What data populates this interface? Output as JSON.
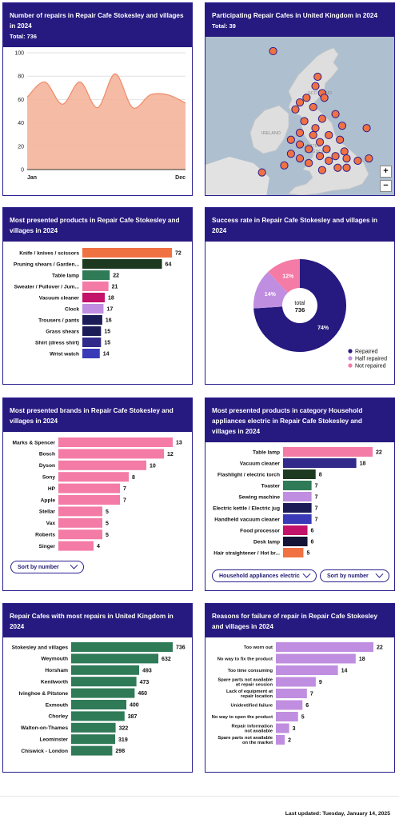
{
  "colors": {
    "header": "#26197f",
    "accent_orange": "#f07142",
    "dark_green": "#1d3a20",
    "green": "#2f7a57",
    "pink": "#f47ba6",
    "magenta": "#c2126a",
    "lavender": "#c08ee0",
    "navy": "#1b1b57",
    "indigo": "#312a8a",
    "blue": "#3a3ab8",
    "area_fill": "#f4b49b"
  },
  "cards": {
    "repairs_time": {
      "title": "Number of repairs in Repair Cafe Stokesley and villages in 2024",
      "total": "Total: 736"
    },
    "map": {
      "title": "Participating Repair Cafes in United Kingdom in 2024",
      "total": "Total: 39",
      "zoom_in": "+",
      "zoom_out": "−",
      "labels": {
        "scotland": "SCOTLAND",
        "ireland": "IRELAND",
        "united": "UNITED",
        "kingdom": "KINGDOM"
      }
    },
    "products": {
      "title": "Most presented products in Repair Cafe Stokesley and villages in 2024"
    },
    "success": {
      "title": "Success rate in Repair Cafe Stokesley and villages in 2024"
    },
    "brands": {
      "title": "Most presented brands in Repair Cafe Stokesley and villages in 2024",
      "sort_label": "Sort by number"
    },
    "household": {
      "title": "Most presented products in category Household appliances electric in Repair Cafe Stokesley and villages in 2024",
      "category_label": "Household appliances electric",
      "sort_label": "Sort by number"
    },
    "cafes": {
      "title": "Repair Cafes with most repairs in United Kingdom in 2024"
    },
    "failure": {
      "title": "Reasons for failure of repair in Repair Cafe Stokesley and villages in 2024"
    }
  },
  "footer": {
    "updated": "Last updated: Tuesday, January 14, 2025"
  },
  "chart_data": [
    {
      "id": "repairs_time",
      "type": "area",
      "x_ticks": [
        "Jan",
        "Dec"
      ],
      "y_ticks": [
        0,
        20,
        40,
        60,
        80,
        100
      ],
      "ylim": [
        0,
        100
      ],
      "values": [
        62,
        75,
        56,
        75,
        53,
        82,
        53,
        64,
        64,
        57
      ]
    },
    {
      "id": "map",
      "type": "scatter",
      "points": [
        [
          -1.4,
          54.8
        ],
        [
          -1.5,
          54.4
        ],
        [
          -1.2,
          54.1
        ],
        [
          -1.9,
          53.9
        ],
        [
          -1.1,
          53.9
        ],
        [
          -2.2,
          53.7
        ],
        [
          -1.6,
          53.5
        ],
        [
          -2.4,
          53.4
        ],
        [
          -0.6,
          53.2
        ],
        [
          -1.2,
          53.0
        ],
        [
          -2.0,
          52.9
        ],
        [
          -1.5,
          52.6
        ],
        [
          -0.3,
          52.7
        ],
        [
          -2.2,
          52.4
        ],
        [
          -1.6,
          52.3
        ],
        [
          -0.9,
          52.3
        ],
        [
          -2.6,
          52.1
        ],
        [
          -1.3,
          52.0
        ],
        [
          -0.4,
          52.1
        ],
        [
          -2.2,
          51.9
        ],
        [
          -1.8,
          51.7
        ],
        [
          -1.0,
          51.7
        ],
        [
          -0.2,
          51.6
        ],
        [
          -2.6,
          51.5
        ],
        [
          -0.6,
          51.4
        ],
        [
          -1.3,
          51.4
        ],
        [
          -2.2,
          51.3
        ],
        [
          -0.9,
          51.2
        ],
        [
          -0.1,
          51.3
        ],
        [
          -1.8,
          51.1
        ],
        [
          -0.5,
          50.9
        ],
        [
          -2.9,
          51.0
        ],
        [
          -1.2,
          50.8
        ],
        [
          -0.1,
          50.9
        ],
        [
          0.4,
          51.2
        ],
        [
          0.9,
          51.3
        ],
        [
          -3.4,
          55.9
        ],
        [
          -3.9,
          50.7
        ],
        [
          0.8,
          52.6
        ]
      ]
    },
    {
      "id": "products",
      "type": "bar",
      "orientation": "horizontal",
      "categories": [
        "Knife / knives / scissors",
        "Pruning shears / Garden...",
        "Table lamp",
        "Sweater / Pullover / Jum...",
        "Vacuum cleaner",
        "Clock",
        "Trousers / pants",
        "Grass shears",
        "Shirt (dress shirt)",
        "Wrist watch"
      ],
      "values": [
        72,
        64,
        22,
        21,
        18,
        17,
        16,
        15,
        15,
        14
      ],
      "colors": [
        "#f07142",
        "#1d3a20",
        "#2f7a57",
        "#f47ba6",
        "#c2126a",
        "#c08ee0",
        "#1b1b57",
        "#1b1b57",
        "#312a8a",
        "#3a3ab8"
      ]
    },
    {
      "id": "success",
      "type": "pie",
      "center_label": "total",
      "center_value": "736",
      "slices": [
        {
          "name": "Repaired",
          "value": 74,
          "label": "74%",
          "color": "#26197f"
        },
        {
          "name": "Half repaired",
          "value": 14,
          "label": "14%",
          "color": "#c08ee0"
        },
        {
          "name": "Not repaired",
          "value": 12,
          "label": "12%",
          "color": "#f47ba6"
        }
      ]
    },
    {
      "id": "brands",
      "type": "bar",
      "orientation": "horizontal",
      "categories": [
        "Marks & Spencer",
        "Bosch",
        "Dyson",
        "Sony",
        "HP",
        "Apple",
        "Stellar",
        "Vax",
        "Roberts",
        "Singer"
      ],
      "values": [
        13,
        12,
        10,
        8,
        7,
        7,
        5,
        5,
        5,
        4
      ],
      "colors": [
        "#f47ba6",
        "#f47ba6",
        "#f47ba6",
        "#f47ba6",
        "#f47ba6",
        "#f47ba6",
        "#f47ba6",
        "#f47ba6",
        "#f47ba6",
        "#f47ba6"
      ]
    },
    {
      "id": "household",
      "type": "bar",
      "orientation": "horizontal",
      "categories": [
        "Table lamp",
        "Vacuum cleaner",
        "Flashlight / electric torch",
        "Toaster",
        "Sewing machine",
        "Electric kettle / Electric jug",
        "Handheld vacuum cleaner",
        "Food processor",
        "Desk lamp",
        "Hair straightener / Hot br..."
      ],
      "values": [
        22,
        18,
        8,
        7,
        7,
        7,
        7,
        6,
        6,
        5
      ],
      "colors": [
        "#f47ba6",
        "#312a8a",
        "#1d3a20",
        "#2f7a57",
        "#c08ee0",
        "#1b1b57",
        "#3a3ab8",
        "#c2126a",
        "#141436",
        "#f07142"
      ]
    },
    {
      "id": "cafes",
      "type": "bar",
      "orientation": "horizontal",
      "categories": [
        "Stokesley and villages",
        "Weymouth",
        "Horsham",
        "Kenilworth",
        "Ivinghoe & Pitstone",
        "Exmouth",
        "Chorley",
        "Walton-on-Thames",
        "Leominster",
        "Chiswick - London"
      ],
      "values": [
        736,
        632,
        493,
        473,
        460,
        400,
        387,
        322,
        319,
        298
      ],
      "colors": [
        "#2f7a57",
        "#2f7a57",
        "#2f7a57",
        "#2f7a57",
        "#2f7a57",
        "#2f7a57",
        "#2f7a57",
        "#2f7a57",
        "#2f7a57",
        "#2f7a57"
      ]
    },
    {
      "id": "failure",
      "type": "bar",
      "orientation": "horizontal",
      "categories": [
        [
          "Too worn out"
        ],
        [
          "No way to fix the product"
        ],
        [
          "Too time consuming"
        ],
        [
          "Spare parts not available",
          "at repair session"
        ],
        [
          "Lack of equipment at",
          "repair location"
        ],
        [
          "Unidentified failure"
        ],
        [
          "No way to open the product"
        ],
        [
          "Repair information",
          "not available"
        ],
        [
          "Spare parts not available",
          "on the market"
        ]
      ],
      "values": [
        22,
        18,
        14,
        9,
        7,
        6,
        5,
        3,
        2
      ],
      "colors": [
        "#c08ee0",
        "#c08ee0",
        "#c08ee0",
        "#c08ee0",
        "#c08ee0",
        "#c08ee0",
        "#c08ee0",
        "#c08ee0",
        "#c08ee0"
      ]
    }
  ]
}
